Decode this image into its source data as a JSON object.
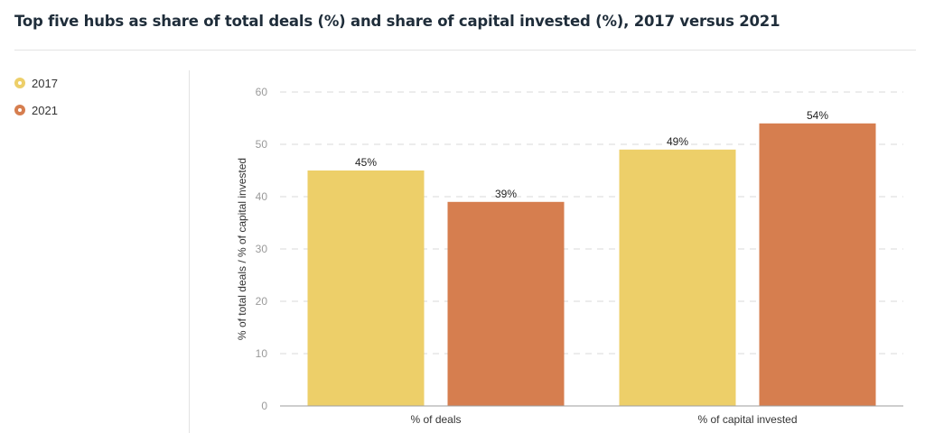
{
  "title": "Top five hubs as share of total deals (%) and share of capital invested (%), 2017 versus 2021",
  "legend": [
    {
      "label": "2017",
      "color": "#EDCF69"
    },
    {
      "label": "2021",
      "color": "#D67E4F"
    }
  ],
  "chart_data": {
    "type": "bar",
    "categories": [
      "% of deals",
      "% of capital invested"
    ],
    "series": [
      {
        "name": "2017",
        "values": [
          45,
          49
        ],
        "labels": [
          "45%",
          "49%"
        ],
        "color": "#EDCF69"
      },
      {
        "name": "2021",
        "values": [
          39,
          54
        ],
        "labels": [
          "39%",
          "54%"
        ],
        "color": "#D67E4F"
      }
    ],
    "ylabel": "% of total deals / % of capital invested",
    "xlabel": "",
    "ylim": [
      0,
      60
    ],
    "yticks": [
      0,
      10,
      20,
      30,
      40,
      50,
      60
    ],
    "grid": true,
    "gridStyle": "dashed",
    "legendPosition": "left"
  }
}
